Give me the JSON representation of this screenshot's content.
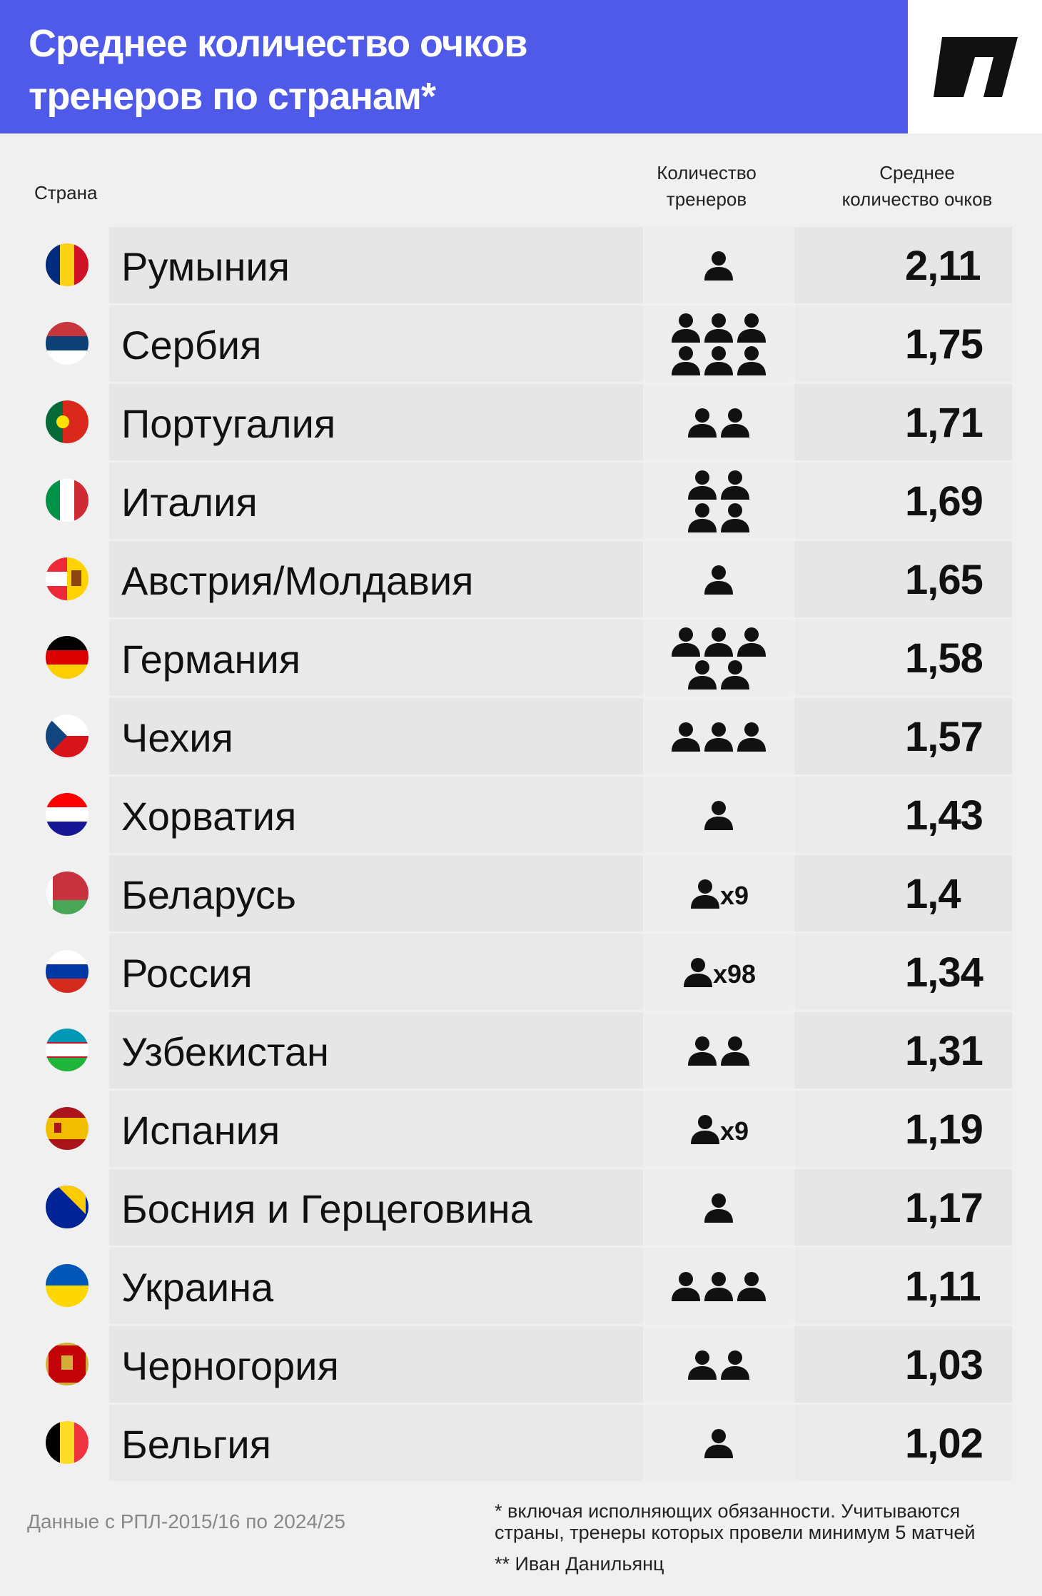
{
  "title_line1": "Среднее количество очков",
  "title_line2": "тренеров по странам*",
  "logo_icon": "sports-ru-logo-icon",
  "colors": {
    "header": "#4f5ae8",
    "background": "#f0f0f0",
    "row": "#e6e6e6"
  },
  "columns": {
    "country": "Страна",
    "count_line1": "Количество",
    "count_line2": "тренеров",
    "avg_line1": "Среднее",
    "avg_line2": "количество очков"
  },
  "chart_data": {
    "type": "table",
    "headers": [
      "Страна",
      "Количество тренеров",
      "Среднее количество очков"
    ],
    "rows": [
      {
        "country": "Румыния",
        "coaches": 1,
        "coaches_label": "",
        "avg": "2,11",
        "flag": [
          "#002B7F",
          "#FCD116",
          "#CE1126"
        ],
        "flag_dir": "v"
      },
      {
        "country": "Сербия",
        "coaches": 6,
        "coaches_label": "",
        "avg": "1,75",
        "flag": [
          "#C6363C",
          "#0C4076",
          "#FFFFFF"
        ],
        "flag_dir": "h"
      },
      {
        "country": "Португалия",
        "coaches": 2,
        "coaches_label": "",
        "avg": "1,71",
        "flag": [
          "#046A38",
          "#DA291C",
          "#DA291C"
        ],
        "flag_dir": "pt"
      },
      {
        "country": "Италия",
        "coaches": 4,
        "coaches_label": "",
        "avg": "1,69",
        "flag": [
          "#009246",
          "#FFFFFF",
          "#CE2B37"
        ],
        "flag_dir": "v"
      },
      {
        "country": "Австрия/Молдавия",
        "coaches": 1,
        "coaches_label": "",
        "avg": "1,65",
        "flag": [
          "#ED2939",
          "#FFFFFF",
          "#ED2939"
        ],
        "flag_dir": "split"
      },
      {
        "country": "Германия",
        "coaches": 5,
        "coaches_label": "",
        "avg": "1,58",
        "flag": [
          "#000000",
          "#DD0000",
          "#FFCE00"
        ],
        "flag_dir": "h"
      },
      {
        "country": "Чехия",
        "coaches": 3,
        "coaches_label": "",
        "avg": "1,57",
        "flag": [
          "#FFFFFF",
          "#D7141A",
          "#11457E"
        ],
        "flag_dir": "cz"
      },
      {
        "country": "Хорватия",
        "coaches": 1,
        "coaches_label": "",
        "avg": "1,43",
        "flag": [
          "#FF0000",
          "#FFFFFF",
          "#171796"
        ],
        "flag_dir": "h"
      },
      {
        "country": "Беларусь",
        "coaches": 9,
        "coaches_label": "x9",
        "avg": "1,4",
        "flag": [
          "#C8313E",
          "#C8313E",
          "#4AA657"
        ],
        "flag_dir": "by"
      },
      {
        "country": "Россия",
        "coaches": 98,
        "coaches_label": "x98",
        "avg": "1,34",
        "flag": [
          "#FFFFFF",
          "#0039A6",
          "#D52B1E"
        ],
        "flag_dir": "h"
      },
      {
        "country": "Узбекистан",
        "coaches": 2,
        "coaches_label": "",
        "avg": "1,31",
        "flag": [
          "#1EB53A",
          "#FFFFFF",
          "#0099B5"
        ],
        "flag_dir": "uz"
      },
      {
        "country": "Испания",
        "coaches": 9,
        "coaches_label": "x9",
        "avg": "1,19",
        "flag": [
          "#AA151B",
          "#F1BF00",
          "#AA151B"
        ],
        "flag_dir": "es"
      },
      {
        "country": "Босния и Герцеговина",
        "coaches": 1,
        "coaches_label": "",
        "avg": "1,17",
        "flag": [
          "#002395",
          "#FECB00",
          "#FFFFFF"
        ],
        "flag_dir": "ba"
      },
      {
        "country": "Украина",
        "coaches": 3,
        "coaches_label": "",
        "avg": "1,11",
        "flag": [
          "#0057B7",
          "#FFD700",
          "#FFD700"
        ],
        "flag_dir": "h2"
      },
      {
        "country": "Черногория",
        "coaches": 2,
        "coaches_label": "",
        "avg": "1,03",
        "flag": [
          "#C40308",
          "#D3AE3B",
          "#C40308"
        ],
        "flag_dir": "me"
      },
      {
        "country": "Бельгия",
        "coaches": 1,
        "coaches_label": "",
        "avg": "1,02",
        "flag": [
          "#000000",
          "#FDDA24",
          "#EF3340"
        ],
        "flag_dir": "v"
      }
    ]
  },
  "source": "Данные с РПЛ-2015/16 по 2024/25",
  "footnote1": "* включая исполняющих обязанности. Учитываются страны, тренеры которых провели минимум 5 матчей",
  "footnote2": "** Иван Данильянц"
}
